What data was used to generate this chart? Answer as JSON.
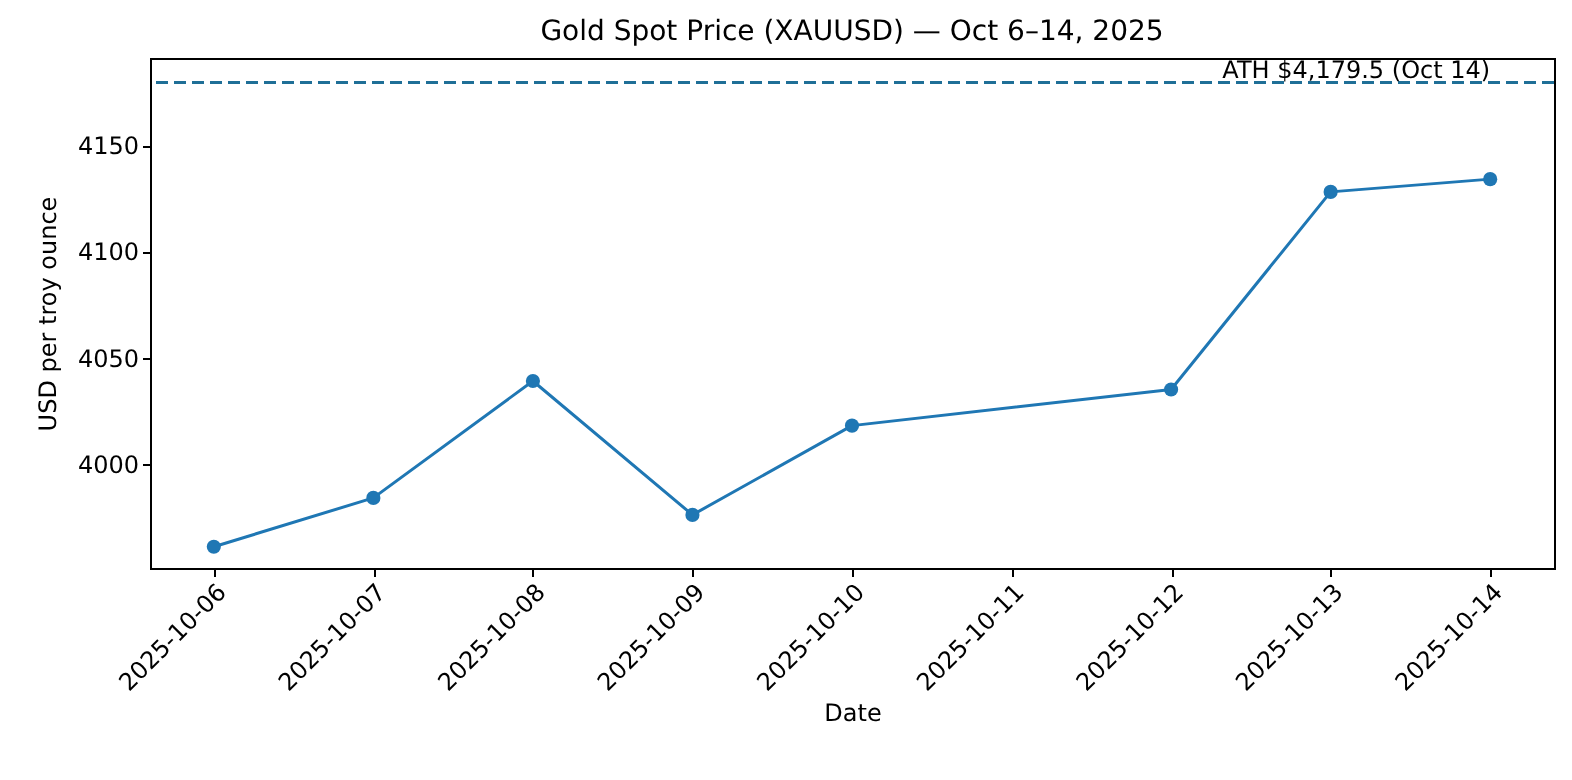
{
  "chart_data": {
    "type": "line",
    "title": "Gold Spot Price (XAUUSD) — Oct 6–14, 2025",
    "xlabel": "Date",
    "ylabel": "USD per troy ounce",
    "x": [
      "2025-10-06",
      "2025-10-07",
      "2025-10-08",
      "2025-10-09",
      "2025-10-10",
      "2025-10-12",
      "2025-10-13",
      "2025-10-14"
    ],
    "series": [
      {
        "color": "#1f77b4",
        "values": [
          3961,
          3984,
          4039,
          3976,
          4018,
          4035,
          4128,
          4134
        ]
      }
    ],
    "marker": "circle",
    "xlim": [
      "2025-10-05T14:24",
      "2025-10-14T09:36"
    ],
    "xticks": [
      "2025-10-06",
      "2025-10-07",
      "2025-10-08",
      "2025-10-09",
      "2025-10-10",
      "2025-10-11",
      "2025-10-12",
      "2025-10-13",
      "2025-10-14"
    ],
    "ylim": [
      3951,
      4191
    ],
    "yticks": [
      4000,
      4050,
      4100,
      4150
    ],
    "ref_lines": [
      {
        "axis": "y",
        "value": 4179.5,
        "label": "ATH $4,179.5 (Oct 14)",
        "color": "#1f6f97",
        "line_style": "dashed"
      }
    ],
    "grid": false
  }
}
